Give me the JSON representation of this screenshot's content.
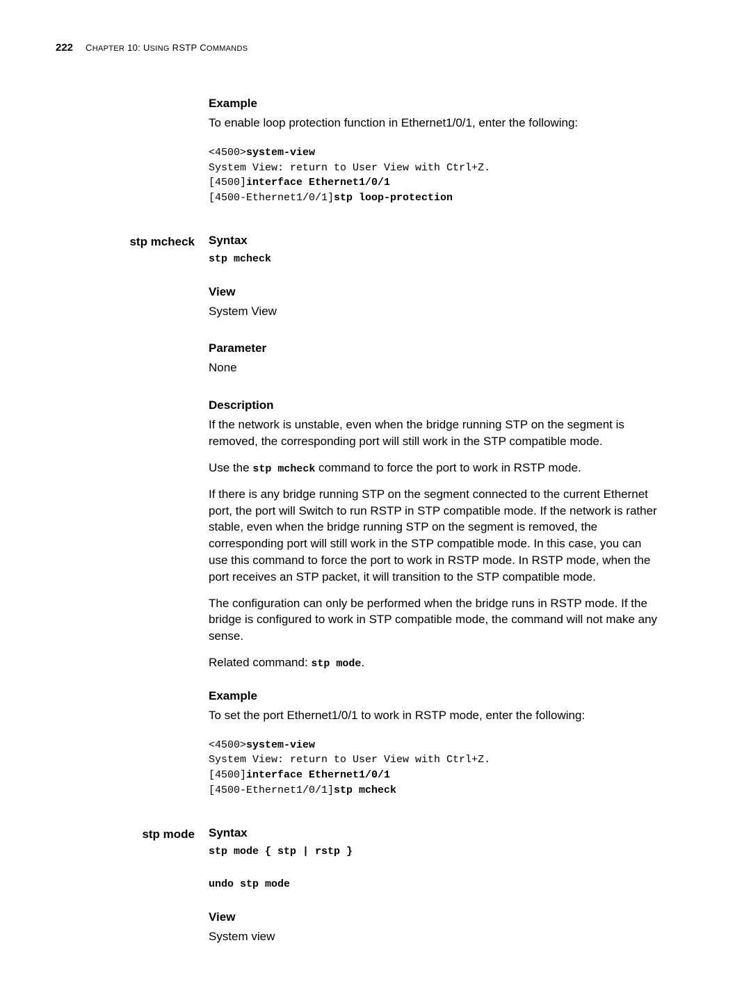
{
  "header": {
    "page_number": "222",
    "chapter_prefix": "C",
    "chapter_word_rest": "HAPTER",
    "chapter_num": " 10: U",
    "chapter_word2": "SING",
    "chapter_word3": " RSTP C",
    "chapter_word4": "OMMANDS"
  },
  "sections": {
    "example1": {
      "heading": "Example",
      "intro": "To enable loop protection function in Ethernet1/0/1, enter the following:",
      "code_line1_prefix": "<4500>",
      "code_line1_bold": "system-view",
      "code_line2": "System View: return to User View with Ctrl+Z.",
      "code_line3_prefix": "[4500]",
      "code_line3_bold": "interface Ethernet1/0/1",
      "code_line4_prefix": "[4500-Ethernet1/0/1]",
      "code_line4_bold": "stp loop-protection"
    },
    "stp_mcheck": {
      "sidebar": "stp mcheck",
      "syntax_heading": "Syntax",
      "syntax_code": "stp mcheck",
      "view_heading": "View",
      "view_text": "System View",
      "parameter_heading": "Parameter",
      "parameter_text": "None",
      "description_heading": "Description",
      "desc_p1": "If the network is unstable, even when the bridge running STP on the segment is removed, the corresponding port will still work in the STP compatible mode.",
      "desc_p2_pre": "Use the ",
      "desc_p2_code": "stp mcheck",
      "desc_p2_post": " command to force the port to work in RSTP mode.",
      "desc_p3": "If there is any bridge running STP on the segment connected to the current Ethernet port, the port will Switch to run RSTP in STP compatible mode.  If the network is rather stable, even when the bridge running STP on the segment is removed, the corresponding port will still work in the STP compatible mode. In this case, you can use this command to force the port to work in RSTP mode.  In RSTP mode, when the port receives an STP packet, it will transition to the STP compatible mode.",
      "desc_p4": "The configuration can only be performed when the bridge runs in RSTP mode. If the bridge is configured to work in STP compatible mode, the command will not make any sense.",
      "related_pre": "Related command: ",
      "related_code": "stp mode",
      "related_post": ".",
      "example_heading": "Example",
      "example_intro": "To set the port Ethernet1/0/1 to work in RSTP mode, enter the following:",
      "ex_code_line1_prefix": "<4500>",
      "ex_code_line1_bold": "system-view",
      "ex_code_line2": "System View: return to User View with Ctrl+Z.",
      "ex_code_line3_prefix": "[4500]",
      "ex_code_line3_bold": "interface Ethernet1/0/1",
      "ex_code_line4_prefix": "[4500-Ethernet1/0/1]",
      "ex_code_line4_bold": "stp mcheck"
    },
    "stp_mode": {
      "sidebar": "stp mode",
      "syntax_heading": "Syntax",
      "syntax_code1": "stp mode { stp | rstp }",
      "syntax_code2": "undo stp mode",
      "view_heading": "View",
      "view_text": "System view"
    }
  }
}
